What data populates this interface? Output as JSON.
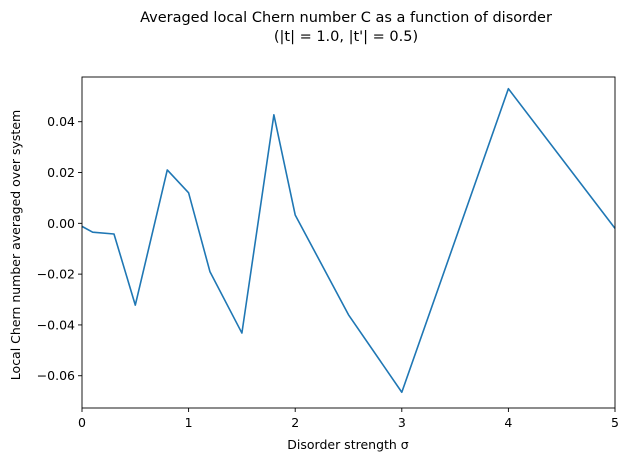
{
  "chart_data": {
    "type": "line",
    "title_line1": "Averaged local Chern number C as a function of disorder",
    "title_line2": "(|t| = 1.0, |t'| = 0.5)",
    "xlabel": "Disorder strength σ",
    "ylabel": "Local Chern number averaged over system",
    "xlim": [
      0,
      5
    ],
    "ylim": [
      -0.0727,
      0.0576
    ],
    "xticks": [
      0,
      1,
      2,
      3,
      4,
      5
    ],
    "xtick_labels": [
      "0",
      "1",
      "2",
      "3",
      "4",
      "5"
    ],
    "yticks": [
      -0.06,
      -0.04,
      -0.02,
      0.0,
      0.02,
      0.04
    ],
    "ytick_labels": [
      "−0.06",
      "−0.04",
      "−0.02",
      "0.00",
      "0.02",
      "0.04"
    ],
    "grid": false,
    "series": [
      {
        "color": "#1f77b4",
        "x": [
          0,
          0.1,
          0.3,
          0.5,
          0.8,
          1.0,
          1.2,
          1.5,
          1.8,
          2.0,
          2.5,
          3.0,
          4.0,
          5.0
        ],
        "y": [
          -0.0012,
          -0.0035,
          -0.0042,
          -0.0322,
          0.021,
          0.012,
          -0.019,
          -0.0432,
          0.0427,
          0.0033,
          -0.036,
          -0.0665,
          0.053,
          -0.002
        ]
      }
    ]
  }
}
